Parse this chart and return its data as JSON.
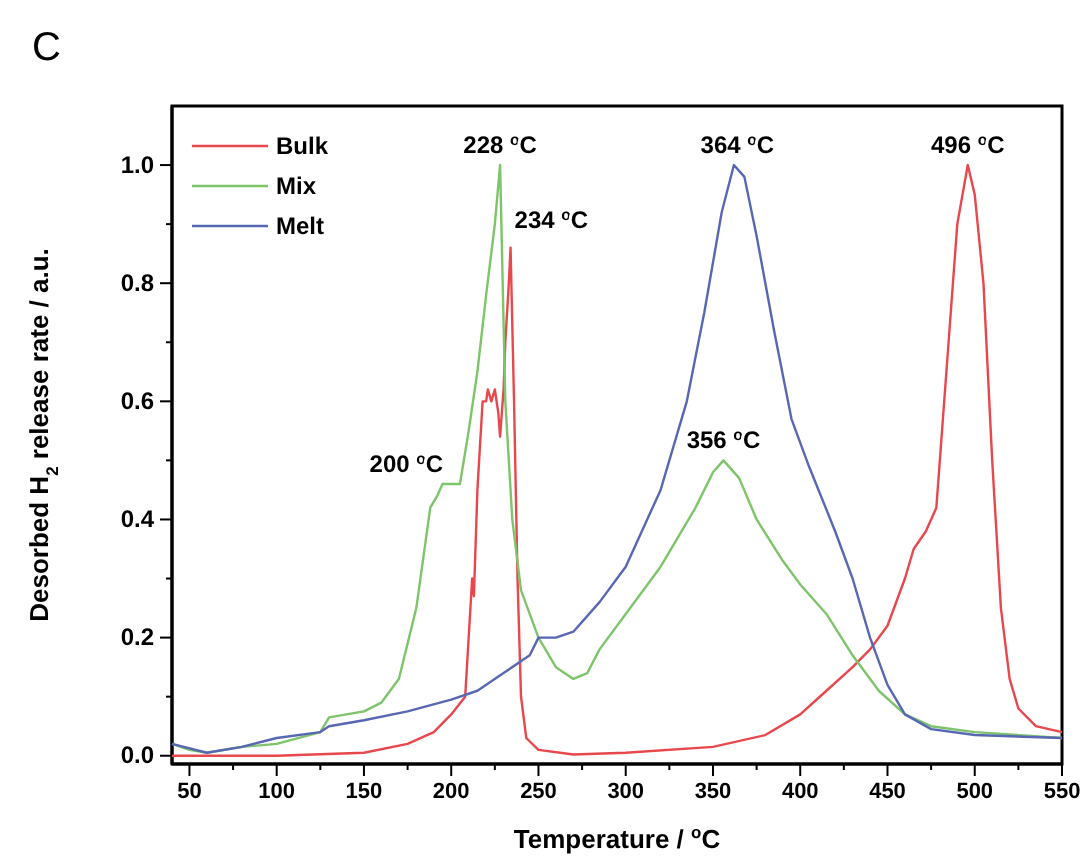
{
  "chart_data": {
    "type": "line",
    "title": "C",
    "xlabel": "Temperature / $^{o}$C",
    "ylabel": "Desorbed H$_{2}$ release rate / a.u.",
    "xlim": [
      40,
      550
    ],
    "ylim": [
      -0.014,
      1.1
    ],
    "xticks": [
      50,
      {
        "value": 75,
        "label": null
      },
      100,
      {
        "value": 125,
        "label": null
      },
      150,
      {
        "value": 175,
        "label": null
      },
      200,
      {
        "value": 225,
        "label": null
      },
      250,
      {
        "value": 275,
        "label": null
      },
      300,
      {
        "value": 325,
        "label": null
      },
      350,
      {
        "value": 375,
        "label": null
      },
      400,
      {
        "value": 425,
        "label": null
      },
      450,
      {
        "value": 475,
        "label": null
      },
      500,
      {
        "value": 525,
        "label": null
      },
      550
    ],
    "yticks": [
      {
        "value": 0,
        "label": "0.0"
      },
      {
        "value": 0.1,
        "label": null
      },
      {
        "value": 0.2,
        "label": "0.2"
      },
      {
        "value": 0.3,
        "label": null
      },
      {
        "value": 0.4,
        "label": "0.4"
      },
      {
        "value": 0.5,
        "label": null
      },
      {
        "value": 0.6,
        "label": "0.6"
      },
      {
        "value": 0.7,
        "label": null
      },
      {
        "value": 0.8,
        "label": "0.8"
      },
      {
        "value": 0.9,
        "label": null
      },
      {
        "value": 1.0,
        "label": "1.0"
      }
    ],
    "grid": false,
    "legend": "top left",
    "line_style": "solid",
    "marker": "none",
    "series": [
      {
        "name": "Bulk",
        "color": "#e8474d",
        "x": [
          40,
          100,
          150,
          175,
          190,
          200,
          208,
          211,
          212,
          213,
          215,
          218,
          220,
          221,
          223,
          225,
          227,
          228,
          230,
          231,
          233,
          234,
          236,
          238,
          240,
          243,
          250,
          270,
          300,
          350,
          380,
          400,
          415,
          430,
          440,
          450,
          460,
          465,
          472,
          478,
          485,
          490,
          496,
          500,
          505,
          510,
          515,
          520,
          525,
          535,
          550
        ],
        "values": [
          0.0,
          0.0,
          0.005,
          0.02,
          0.04,
          0.07,
          0.1,
          0.25,
          0.3,
          0.27,
          0.45,
          0.6,
          0.6,
          0.62,
          0.6,
          0.62,
          0.58,
          0.54,
          0.62,
          0.7,
          0.8,
          0.86,
          0.6,
          0.3,
          0.1,
          0.03,
          0.01,
          0.002,
          0.005,
          0.015,
          0.035,
          0.07,
          0.11,
          0.15,
          0.18,
          0.22,
          0.3,
          0.35,
          0.38,
          0.42,
          0.7,
          0.9,
          1.0,
          0.95,
          0.8,
          0.5,
          0.25,
          0.13,
          0.08,
          0.05,
          0.04
        ]
      },
      {
        "name": "Mix",
        "color": "#7dc46a",
        "x": [
          40,
          50,
          60,
          80,
          100,
          125,
          130,
          140,
          150,
          160,
          170,
          180,
          188,
          192,
          195,
          200,
          205,
          210,
          215,
          220,
          225,
          228,
          231,
          235,
          240,
          250,
          260,
          270,
          278,
          285,
          300,
          320,
          340,
          350,
          356,
          365,
          375,
          390,
          400,
          415,
          430,
          445,
          460,
          475,
          500,
          550
        ],
        "values": [
          0.02,
          0.01,
          0.005,
          0.015,
          0.02,
          0.04,
          0.065,
          0.07,
          0.075,
          0.09,
          0.13,
          0.25,
          0.42,
          0.44,
          0.46,
          0.46,
          0.46,
          0.55,
          0.65,
          0.78,
          0.9,
          1.0,
          0.6,
          0.4,
          0.28,
          0.2,
          0.15,
          0.13,
          0.14,
          0.18,
          0.24,
          0.32,
          0.42,
          0.48,
          0.5,
          0.47,
          0.4,
          0.33,
          0.29,
          0.24,
          0.17,
          0.11,
          0.07,
          0.05,
          0.04,
          0.03
        ]
      },
      {
        "name": "Melt",
        "color": "#5867b3",
        "x": [
          40,
          60,
          80,
          100,
          125,
          130,
          150,
          175,
          200,
          215,
          230,
          245,
          250,
          260,
          270,
          285,
          300,
          320,
          335,
          345,
          355,
          362,
          368,
          375,
          385,
          395,
          405,
          420,
          430,
          440,
          450,
          460,
          475,
          500,
          550
        ],
        "values": [
          0.02,
          0.005,
          0.015,
          0.03,
          0.04,
          0.05,
          0.06,
          0.075,
          0.095,
          0.11,
          0.14,
          0.17,
          0.2,
          0.2,
          0.21,
          0.26,
          0.32,
          0.45,
          0.6,
          0.75,
          0.92,
          1.0,
          0.98,
          0.88,
          0.72,
          0.57,
          0.49,
          0.38,
          0.3,
          0.2,
          0.12,
          0.07,
          0.045,
          0.035,
          0.03
        ]
      }
    ],
    "annotations": [
      {
        "text": "200 $^{o}$C",
        "x": 200,
        "y": 0.46
      },
      {
        "text": "228 $^{o}$C",
        "x": 228,
        "y": 1.0
      },
      {
        "text": "234 $^{o}$C",
        "x": 234,
        "y": 0.86
      },
      {
        "text": "356 $^{o}$C",
        "x": 356,
        "y": 0.5
      },
      {
        "text": "364 $^{o}$C",
        "x": 364,
        "y": 1.0
      },
      {
        "text": "496 $^{o}$C",
        "x": 496,
        "y": 1.0
      }
    ]
  }
}
